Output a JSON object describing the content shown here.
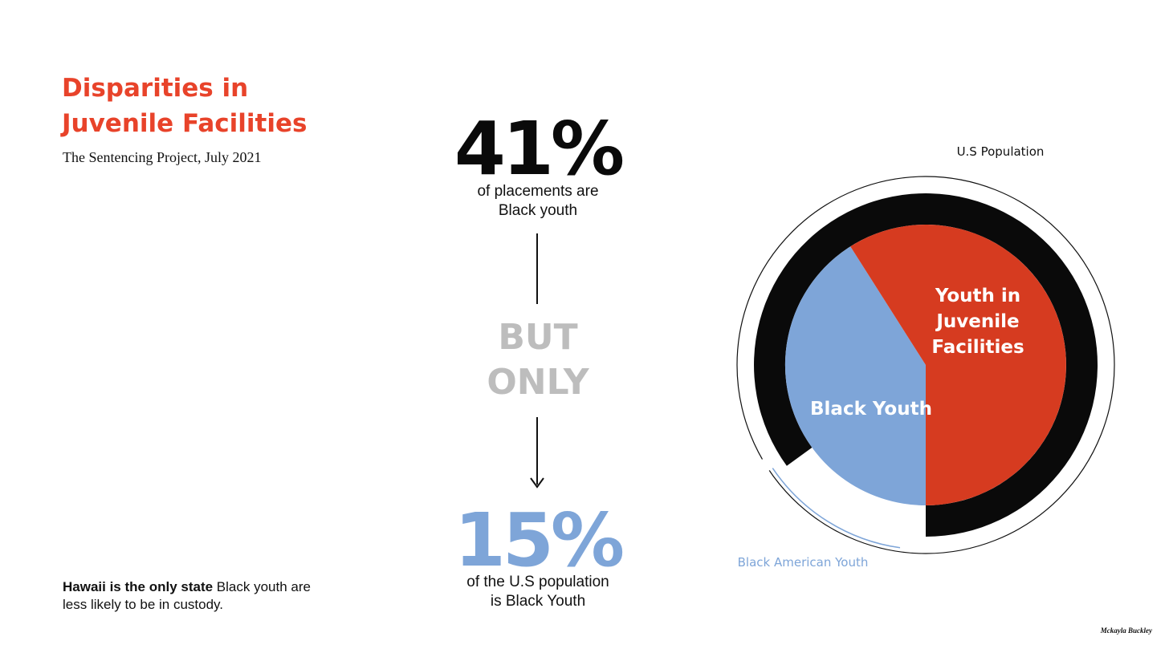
{
  "header": {
    "title_line1": "Disparities in",
    "title_line2": "Juvenile Facilities",
    "source": "The Sentencing Project, July 2021"
  },
  "stats": {
    "top_value": "41%",
    "top_caption_line1": "of placements are",
    "top_caption_line2": "Black youth",
    "connector_line1": "BUT",
    "connector_line2": "ONLY",
    "bottom_value": "15%",
    "bottom_caption_line1": "of the U.S population",
    "bottom_caption_line2": "is Black Youth"
  },
  "footnote": {
    "bold": "Hawaii is the only state",
    "rest": "Black youth are less likely to be in custody."
  },
  "credit": "Mckayla Buckley",
  "colors": {
    "accent_red": "#e8432a",
    "pie_red": "#d63b20",
    "blue": "#7ea5d8",
    "black": "#0a0a0a",
    "gray": "#bdbdbd"
  },
  "chart_data": {
    "type": "pie",
    "labels": {
      "outer_ring": "U.S Population",
      "inner_arc": "Black American Youth",
      "red_slice": [
        "Youth in",
        "Juvenile",
        "Facilities"
      ],
      "blue_slice": "Black Youth"
    },
    "slices": [
      {
        "name": "Black Youth",
        "value": 41,
        "color": "#7ea5d8"
      },
      {
        "name": "Youth in Juvenile Facilities",
        "value": 59,
        "color": "#d63b20"
      }
    ],
    "ring_share": {
      "black_american_youth_percent": 15
    }
  }
}
